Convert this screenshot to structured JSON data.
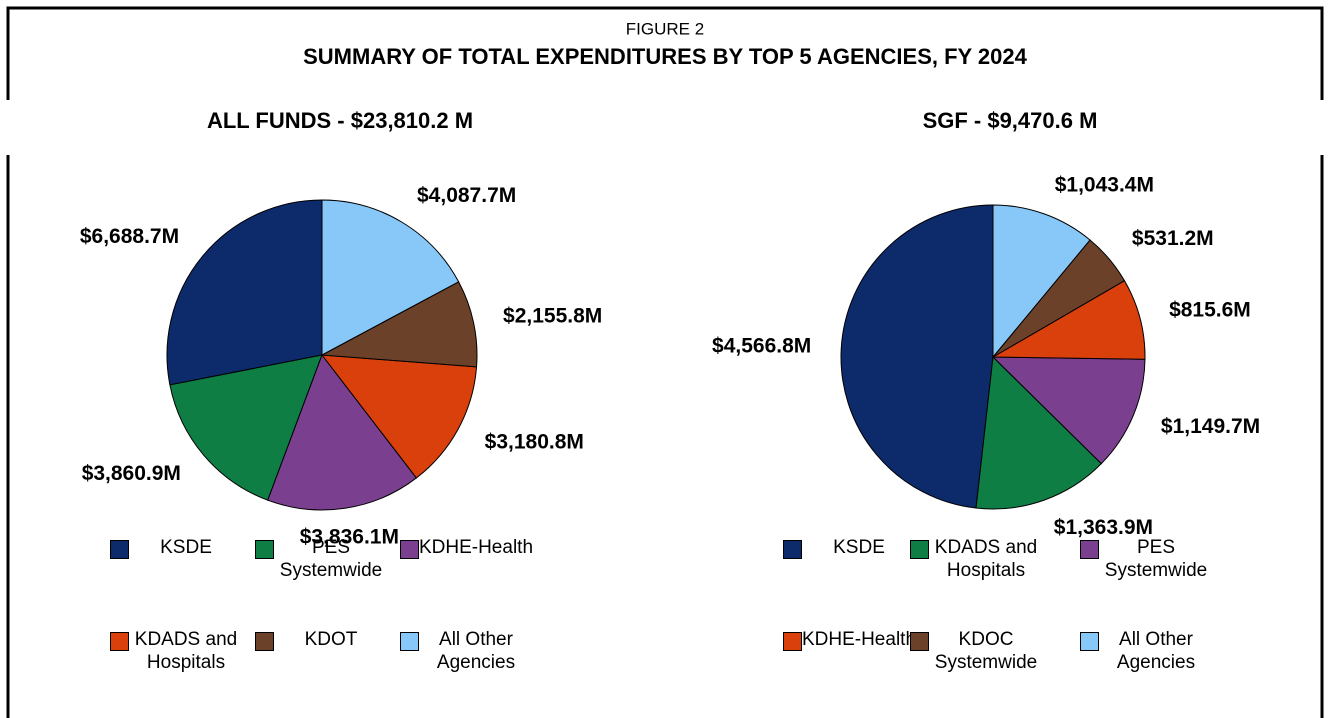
{
  "figure_label": "FIGURE 2",
  "title": "SUMMARY OF TOTAL EXPENDITURES BY TOP 5 AGENCIES, FY 2024",
  "chart_data": [
    {
      "type": "pie",
      "title": "ALL FUNDS - $23,810.2 M",
      "categories": [
        "KSDE",
        "PES Systemwide",
        "KDHE-Health",
        "KDADS and Hospitals",
        "KDOT",
        "All Other Agencies"
      ],
      "values": [
        6688.7,
        3860.9,
        3836.1,
        3180.8,
        2155.8,
        4087.7
      ],
      "value_labels": [
        "$6,688.7M",
        "$3,860.9M",
        "$3,836.1M",
        "$3,180.8M",
        "$2,155.8M",
        "$4,087.7M"
      ],
      "colors": [
        "#0d2a6b",
        "#0e7e45",
        "#7b3f8f",
        "#d9400b",
        "#6b4129",
        "#88c8f8"
      ]
    },
    {
      "type": "pie",
      "title": "SGF - $9,470.6 M",
      "categories": [
        "KSDE",
        "KDADS and Hospitals",
        "PES Systemwide",
        "KDHE-Health",
        "KDOC Systemwide",
        "All Other Agencies"
      ],
      "values": [
        4566.8,
        1363.9,
        1149.7,
        815.6,
        531.2,
        1043.4
      ],
      "value_labels": [
        "$4,566.8M",
        "$1,363.9M",
        "$1,149.7M",
        "$815.6M",
        "$531.2M",
        "$1,043.4M"
      ],
      "colors": [
        "#0d2a6b",
        "#0e7e45",
        "#7b3f8f",
        "#d9400b",
        "#6b4129",
        "#88c8f8"
      ]
    }
  ]
}
